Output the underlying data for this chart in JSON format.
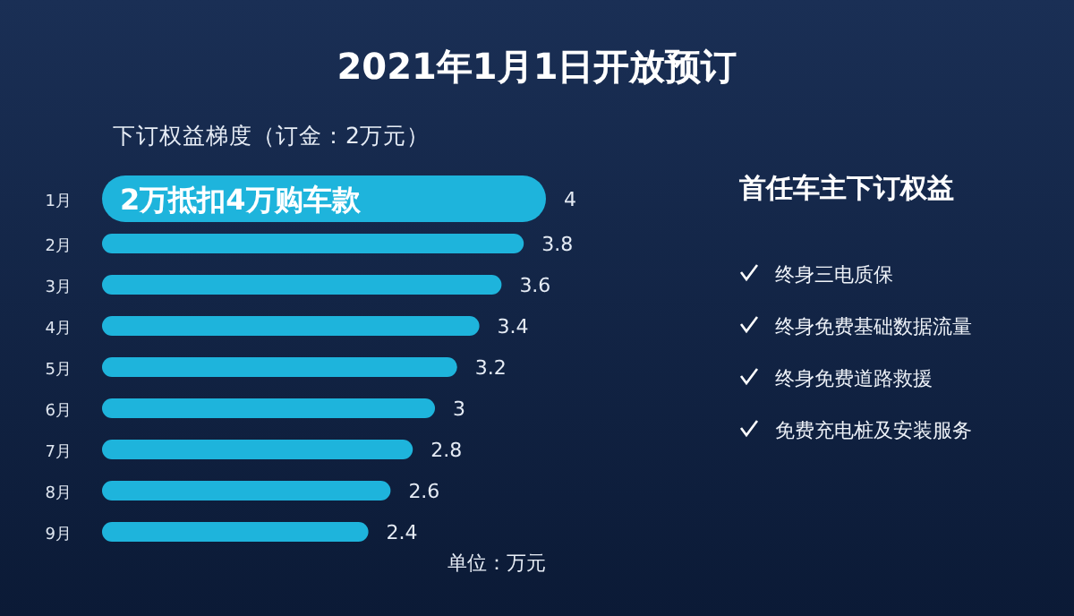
{
  "chart_data": [
    {
      "type": "bar",
      "orientation": "horizontal",
      "title": "2021年1月1日开放预订",
      "subtitle": "下订权益梯度（订金：2万元）",
      "categories": [
        "1月",
        "2月",
        "3月",
        "4月",
        "5月",
        "6月",
        "7月",
        "8月",
        "9月"
      ],
      "values": [
        4,
        3.8,
        3.6,
        3.4,
        3.2,
        3,
        2.8,
        2.6,
        2.4
      ],
      "color": "#1eb4dc",
      "data_labels": true,
      "annotations": [
        "2万抵扣4万购车款",
        "单位：万元"
      ]
    },
    {
      "type": "other",
      "title": "首任车主下订权益",
      "annotations": [
        "终身三电质保",
        "终身免费基础数据流量",
        "终身免费道路救援",
        "免费充电桩及安装服务"
      ]
    }
  ]
}
